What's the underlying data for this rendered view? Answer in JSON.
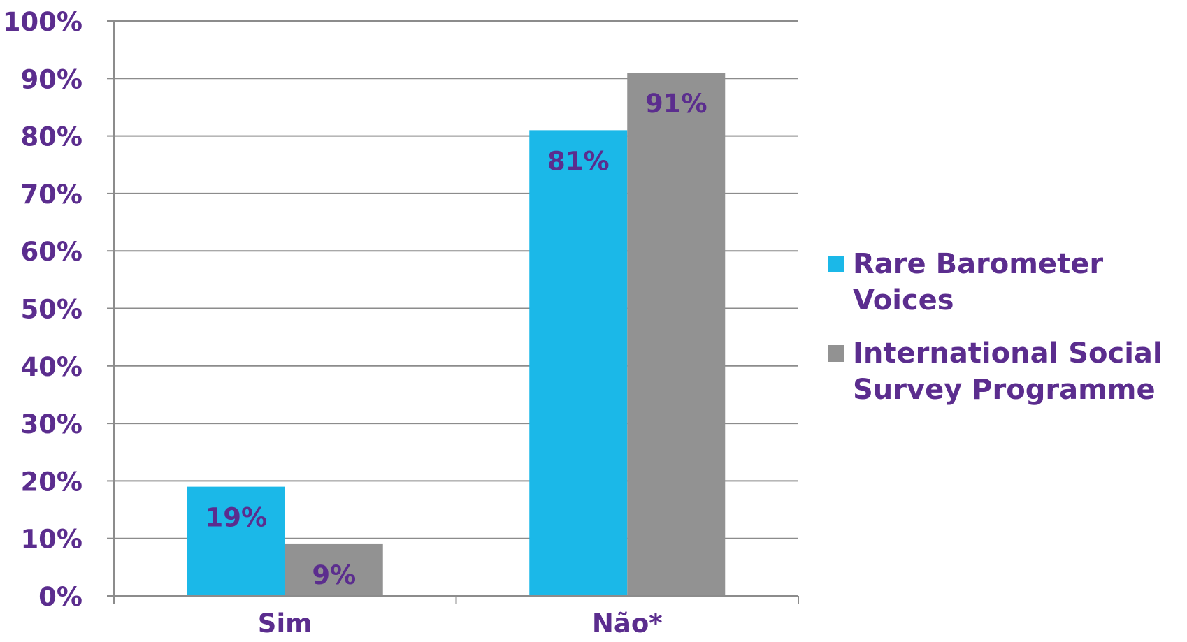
{
  "colors": {
    "text": "#5b2d8e",
    "grid": "#8c8c8c",
    "axis": "#8c8c8c",
    "series_1": "#1bb8e8",
    "series_2": "#929292"
  },
  "chart_data": {
    "type": "bar",
    "title": "",
    "xlabel": "",
    "ylabel": "",
    "ylim": [
      0,
      100
    ],
    "y_ticks": [
      "0%",
      "10%",
      "20%",
      "30%",
      "40%",
      "50%",
      "60%",
      "70%",
      "80%",
      "90%",
      "100%"
    ],
    "grid": true,
    "legend_position": "right",
    "categories": [
      "Sim",
      "Não*"
    ],
    "series": [
      {
        "name": "Rare Barometer\nVoices",
        "color": "#1bb8e8",
        "values": [
          19,
          81
        ],
        "labels": [
          "19%",
          "81%"
        ]
      },
      {
        "name": "International Social\nSurvey Programme",
        "color": "#929292",
        "values": [
          9,
          91
        ],
        "labels": [
          "9%",
          "91%"
        ]
      }
    ]
  }
}
